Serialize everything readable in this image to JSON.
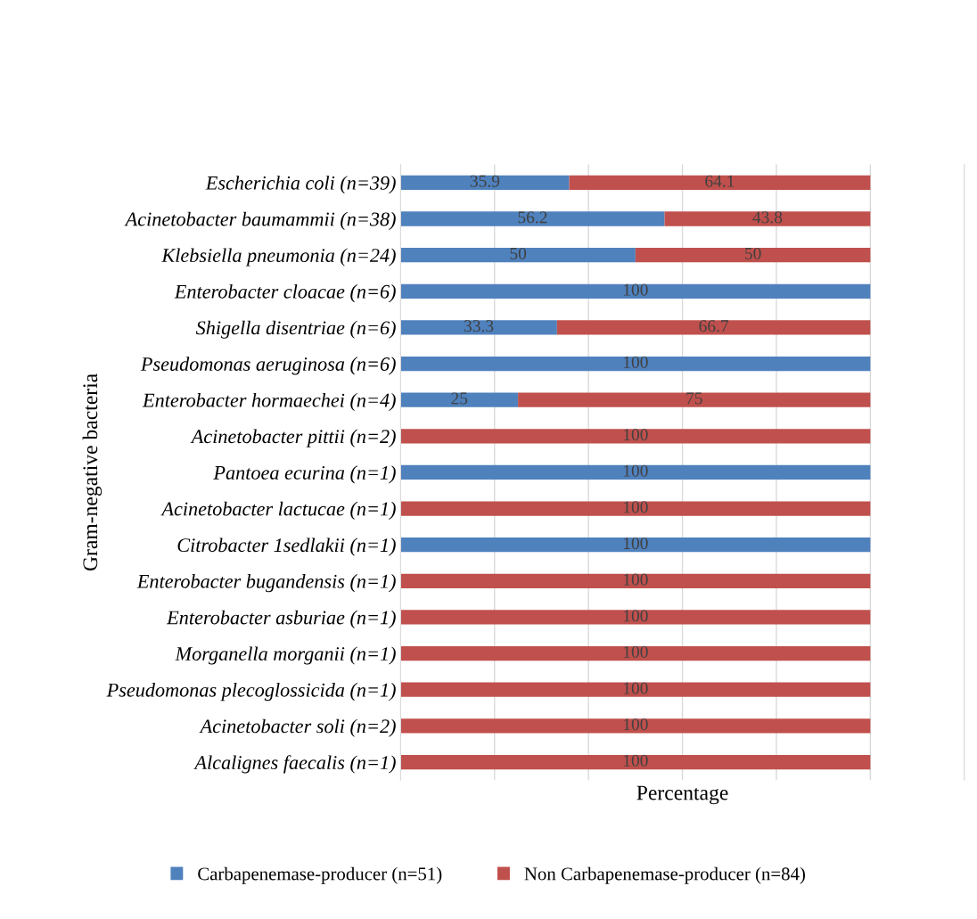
{
  "chart_data": {
    "type": "bar",
    "orientation": "horizontal",
    "stacked": true,
    "categories": [
      "Escherichia coli (n=39)",
      "Acinetobacter baumammii (n=38)",
      "Klebsiella pneumonia (n=24)",
      "Enterobacter cloacae (n=6)",
      "Shigella disentriae (n=6)",
      "Pseudomonas aeruginosa (n=6)",
      "Enterobacter hormaechei (n=4)",
      "Acinetobacter pittii (n=2)",
      "Pantoea ecurina (n=1)",
      "Acinetobacter lactucae (n=1)",
      "Citrobacter 1sedlakii (n=1)",
      "Enterobacter bugandensis (n=1)",
      "Enterobacter asburiae (n=1)",
      "Morganella morganii (n=1)",
      "Pseudomonas plecoglossicida (n=1)",
      "Acinetobacter soli (n=2)",
      "Alcalignes faecalis (n=1)"
    ],
    "series": [
      {
        "name": "Carbapenemase-producer (n=51)",
        "color": "#4f81bd",
        "values": [
          35.9,
          56.2,
          50,
          100,
          33.3,
          100,
          25,
          null,
          100,
          null,
          100,
          null,
          null,
          null,
          null,
          null,
          null
        ]
      },
      {
        "name": "Non Carbapenemase-producer (n=84)",
        "color": "#c0504d",
        "values": [
          64.1,
          43.8,
          50,
          null,
          66.7,
          null,
          75,
          100,
          null,
          100,
          null,
          100,
          100,
          100,
          100,
          100,
          100
        ]
      }
    ],
    "data_labels": true,
    "xlabel": "Percentage",
    "ylabel": "Gram-negative bacteria",
    "xlim": [
      0,
      120
    ],
    "xticks": [
      {
        "value": 0,
        "label": null
      },
      {
        "value": 20,
        "label": null
      },
      {
        "value": 40,
        "label": null
      },
      {
        "value": 60,
        "label": null
      },
      {
        "value": 80,
        "label": null
      },
      {
        "value": 100,
        "label": null
      },
      {
        "value": 120,
        "label": null
      }
    ],
    "tick_labels": "y",
    "grid": "x",
    "legend": "bottom"
  }
}
